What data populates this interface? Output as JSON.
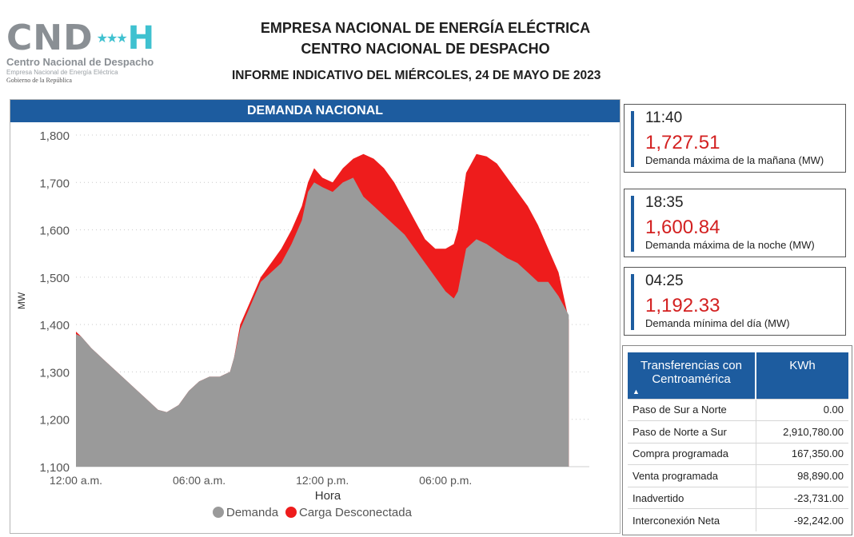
{
  "header": {
    "logo": {
      "main": "CND",
      "stars": "★★★",
      "h": "H",
      "line1": "Centro Nacional de Despacho",
      "line2": "Empresa Nacional de Energía Eléctrica",
      "line3": "Gobierno de la República"
    },
    "title_line1": "EMPRESA NACIONAL DE ENERGÍA ELÉCTRICA",
    "title_line2": "CENTRO NACIONAL DE DESPACHO",
    "report": "INFORME INDICATIVO DEL MIÉRCOLES, 24 DE MAYO DE 2023"
  },
  "chart_data": {
    "type": "area",
    "title": "DEMANDA NACIONAL",
    "xlabel": "Hora",
    "ylabel": "MW",
    "ylim": [
      1100,
      1800
    ],
    "yticks": [
      "1,800",
      "1,700",
      "1,600",
      "1,500",
      "1,400",
      "1,300",
      "1,200",
      "1,100"
    ],
    "xticks": [
      "12:00 a.m.",
      "06:00 a.m.",
      "12:00 p.m.",
      "06:00 p.m."
    ],
    "xtick_hours": [
      0,
      6,
      12,
      18
    ],
    "xlim_hours": [
      0,
      25
    ],
    "grid": true,
    "legend_position": "bottom",
    "colors": {
      "Demanda": "#9a9a9a",
      "Carga Desconectada": "#ee1c1c"
    },
    "series": [
      {
        "name": "Demanda",
        "x": [
          0,
          0.25,
          0.75,
          1.5,
          2.25,
          3,
          3.5,
          4,
          4.42,
          5,
          5.5,
          6,
          6.5,
          7,
          7.5,
          7.7,
          8,
          8.5,
          9,
          9.5,
          10,
          10.5,
          11,
          11.3,
          11.6,
          12,
          12.5,
          13,
          13.5,
          14,
          14.5,
          15,
          15.5,
          16,
          16.5,
          17,
          17.5,
          18,
          18.4,
          18.6,
          19,
          19.5,
          20,
          20.5,
          21,
          21.5,
          22,
          22.5,
          23,
          23.5,
          24
        ],
        "y": [
          1380,
          1375,
          1350,
          1320,
          1290,
          1260,
          1240,
          1220,
          1215,
          1230,
          1260,
          1280,
          1290,
          1290,
          1300,
          1330,
          1390,
          1440,
          1490,
          1510,
          1530,
          1570,
          1620,
          1680,
          1700,
          1690,
          1680,
          1700,
          1710,
          1670,
          1650,
          1630,
          1610,
          1590,
          1560,
          1530,
          1500,
          1470,
          1455,
          1470,
          1560,
          1580,
          1570,
          1555,
          1540,
          1530,
          1510,
          1490,
          1490,
          1460,
          1420
        ]
      },
      {
        "name": "Carga Desconectada",
        "x": [
          0,
          0.25,
          0.75,
          1.5,
          2.25,
          3,
          3.5,
          4,
          4.42,
          5,
          5.5,
          6,
          6.5,
          7,
          7.5,
          7.7,
          8,
          8.5,
          9,
          9.5,
          10,
          10.5,
          11,
          11.3,
          11.6,
          12,
          12.5,
          13,
          13.5,
          14,
          14.5,
          15,
          15.5,
          16,
          16.5,
          17,
          17.5,
          18,
          18.4,
          18.6,
          19,
          19.5,
          20,
          20.5,
          21,
          21.5,
          22,
          22.5,
          23,
          23.5,
          24
        ],
        "y": [
          1385,
          1375,
          1350,
          1320,
          1290,
          1260,
          1240,
          1220,
          1215,
          1230,
          1260,
          1280,
          1290,
          1290,
          1300,
          1330,
          1400,
          1450,
          1500,
          1530,
          1560,
          1600,
          1650,
          1700,
          1730,
          1710,
          1700,
          1730,
          1750,
          1760,
          1750,
          1730,
          1700,
          1660,
          1620,
          1580,
          1560,
          1560,
          1570,
          1600,
          1720,
          1760,
          1755,
          1740,
          1710,
          1680,
          1650,
          1610,
          1560,
          1510,
          1410
        ]
      }
    ]
  },
  "legend": {
    "demanda": "Demanda",
    "carga": "Carga Desconectada"
  },
  "stats": [
    {
      "time": "11:40",
      "value": "1,727.51",
      "label": "Demanda máxima de la mañana (MW)"
    },
    {
      "time": "18:35",
      "value": "1,600.84",
      "label": "Demanda máxima de la noche (MW)"
    },
    {
      "time": "04:25",
      "value": "1,192.33",
      "label": "Demanda mínima del día (MW)"
    }
  ],
  "transfers": {
    "header_name": "Transferencias con Centroamérica",
    "header_unit": "KWh",
    "sort_icon": "▲",
    "rows": [
      {
        "name": "Paso de Sur a Norte",
        "value": "0.00"
      },
      {
        "name": "Paso de Norte a Sur",
        "value": "2,910,780.00"
      },
      {
        "name": "Compra programada",
        "value": "167,350.00"
      },
      {
        "name": "Venta programada",
        "value": "98,890.00"
      },
      {
        "name": "Inadvertido",
        "value": "-23,731.00"
      },
      {
        "name": "Interconexión Neta",
        "value": "-92,242.00"
      }
    ]
  }
}
